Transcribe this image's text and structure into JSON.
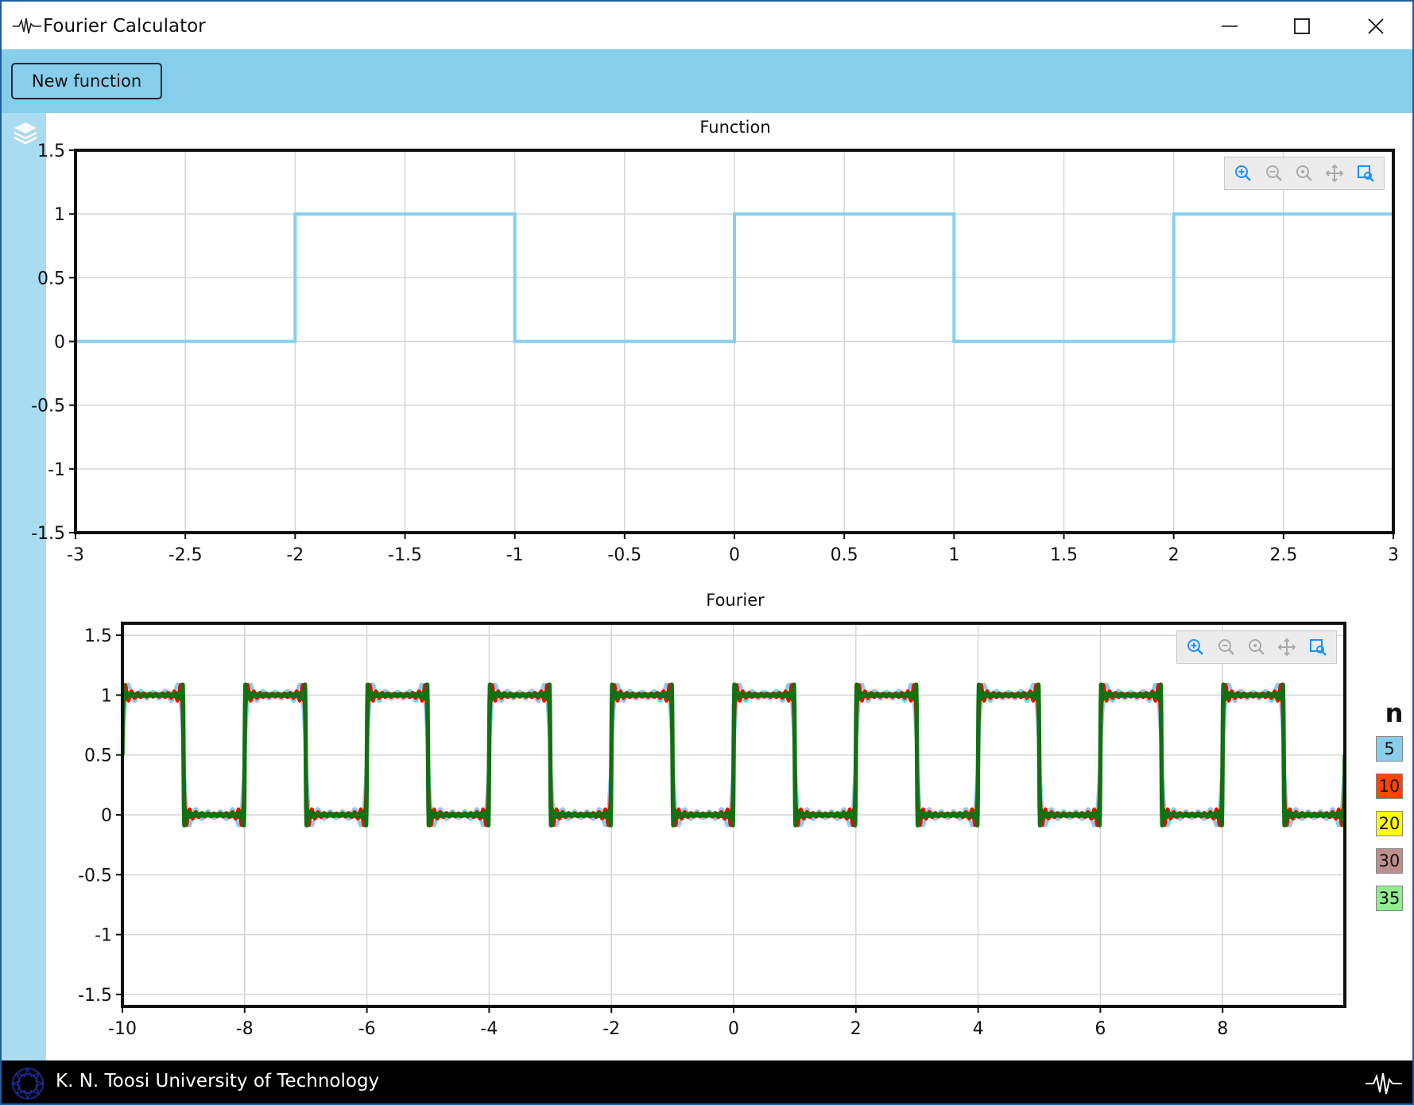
{
  "window": {
    "title": "Fourier Calculator",
    "controls": {
      "minimize": "minimize-icon",
      "maximize": "maximize-icon",
      "close": "close-icon"
    }
  },
  "toolbar": {
    "new_function_label": "New function"
  },
  "sidebar": {
    "icon": "layers-icon"
  },
  "status_bar": {
    "text": "K. N. Toosi University of Technology",
    "logo": "university-logo",
    "right_icon": "pulse-icon"
  },
  "colors": {
    "toolbar": "#87ceeb",
    "sidebar": "#a9dcf1",
    "status_bar": "#000000"
  },
  "chart_data": [
    {
      "type": "line",
      "title": "Function",
      "xlim": [
        -3,
        3
      ],
      "ylim": [
        -1.5,
        1.5
      ],
      "x_ticks": [
        "-3",
        "-2.5",
        "-2",
        "-1.5",
        "-1",
        "-0.5",
        "0",
        "0.5",
        "1",
        "1.5",
        "2",
        "2.5",
        "3"
      ],
      "y_ticks": [
        "1.5",
        "1",
        "0.5",
        "0",
        "-0.5",
        "-1",
        "-1.5"
      ],
      "grid": true,
      "series": [
        {
          "color": "#87ceeb",
          "x": [
            -3,
            -2,
            -2,
            -1,
            -1,
            0,
            0,
            1,
            1,
            2,
            2,
            3
          ],
          "y": [
            0,
            0,
            1,
            1,
            0,
            0,
            1,
            1,
            0,
            0,
            1,
            1
          ]
        }
      ]
    },
    {
      "type": "line",
      "title": "Fourier",
      "xlim": [
        -10,
        10
      ],
      "ylim": [
        -1.6,
        1.6
      ],
      "x_ticks": [
        "-10",
        "-8",
        "-6",
        "-4",
        "-2",
        "0",
        "2",
        "4",
        "6",
        "8"
      ],
      "y_ticks": [
        "1.5",
        "1",
        "0.5",
        "0",
        "-0.5",
        "-1",
        "-1.5"
      ],
      "grid": true,
      "period": 2,
      "legend_title": "n",
      "legend_position": "right",
      "series": [
        {
          "name": "5",
          "terms": 5,
          "color": "#87ceeb"
        },
        {
          "name": "10",
          "terms": 10,
          "color": "#ff4500"
        },
        {
          "name": "20",
          "terms": 20,
          "color": "#ffff00"
        },
        {
          "name": "30",
          "terms": 30,
          "color": "#bc8f8f"
        },
        {
          "name": "35",
          "terms": 35,
          "color": "#90ee90"
        }
      ],
      "drawn_colors": [
        "#87ceeb",
        "#ffff00",
        "#ff0000",
        "#117011"
      ]
    }
  ]
}
